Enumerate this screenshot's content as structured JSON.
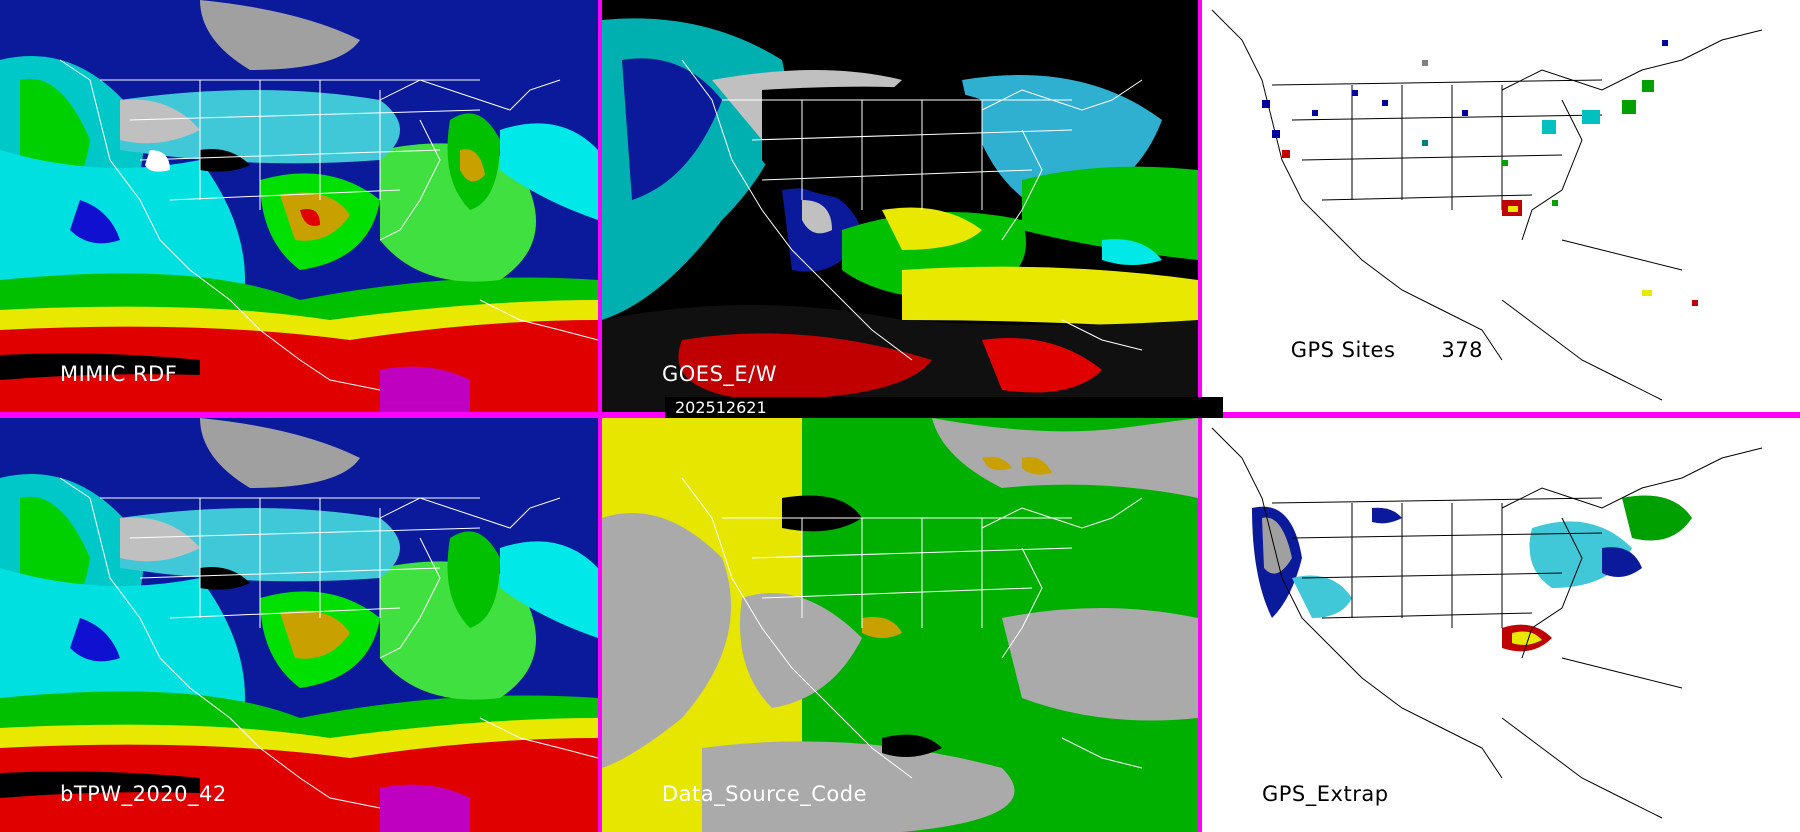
{
  "panels": {
    "top_left": {
      "label": "MIMIC RDF"
    },
    "top_middle": {
      "label": "GOES_E/W"
    },
    "top_right": {
      "label": "GPS Sites",
      "site_count": "378"
    },
    "bottom_left": {
      "label": "bTPW_2020_42"
    },
    "bottom_middle": {
      "label": "Data_Source_Code"
    },
    "bottom_right": {
      "label": "GPS_Extrap"
    }
  },
  "timestamp": "202512621",
  "colors": {
    "separator": "#ff00ff",
    "map_outline": "#ffffff",
    "map_outline_dark": "#000000",
    "tpw_scale": [
      "#000080",
      "#0000ff",
      "#00ffff",
      "#00c000",
      "#c8a000",
      "#ffff00",
      "#ff0000",
      "#ff00ff"
    ],
    "source_yellow": "#e6e600",
    "source_green": "#00b000",
    "source_gray": "#aaaaaa"
  }
}
